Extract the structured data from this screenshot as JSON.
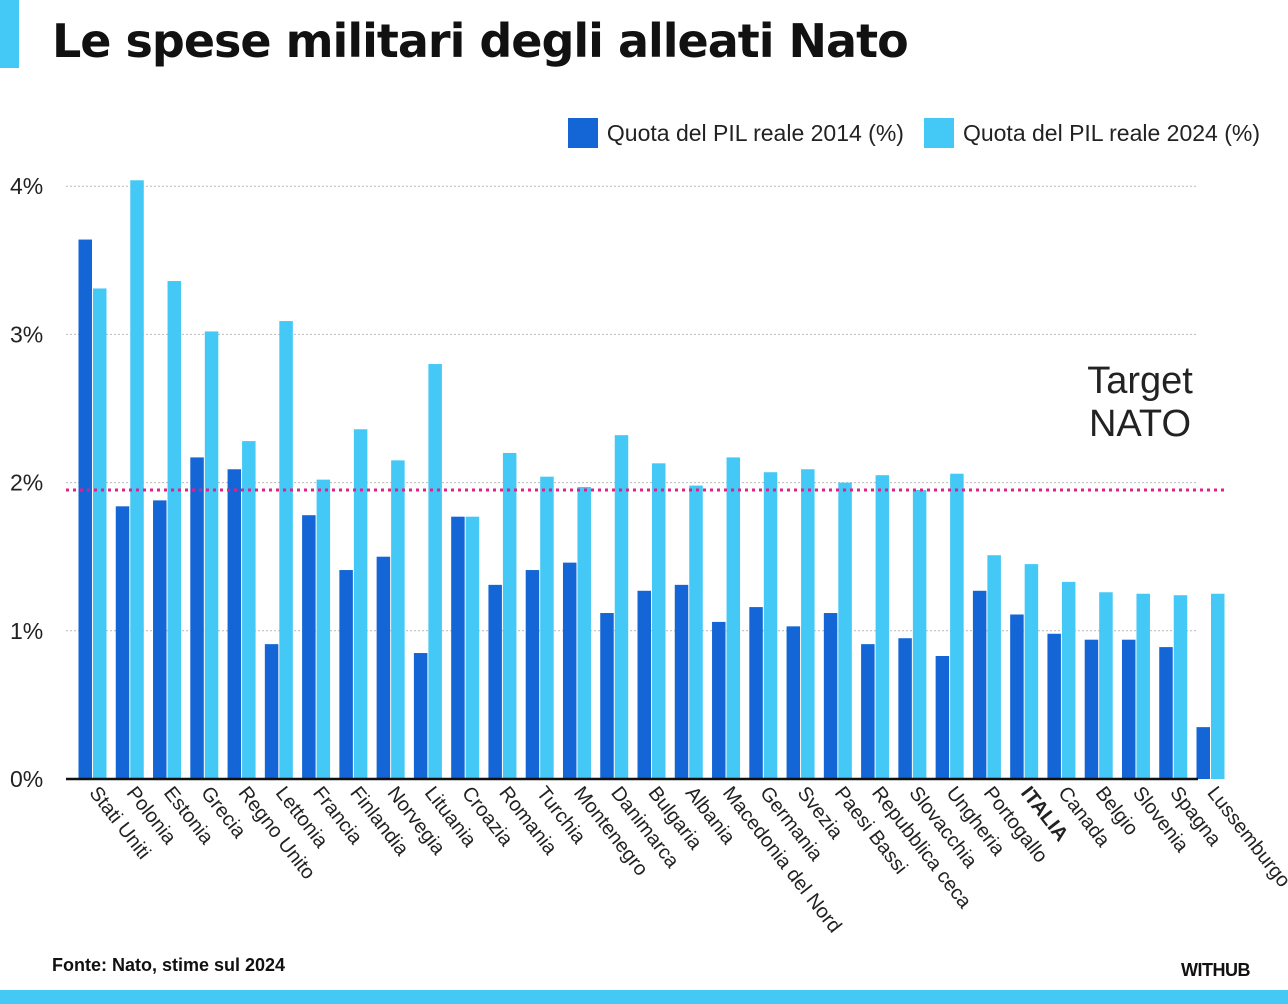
{
  "title": "Le spese militari degli alleati Nato",
  "source": "Fonte: Nato, stime sul 2024",
  "brand": "WITHUB",
  "colors": {
    "series2014": "#1466d6",
    "series2024": "#44c8f5",
    "target": "#e0218a",
    "accent": "#44c8f5"
  },
  "chart_data": {
    "type": "bar",
    "legend_position": "top-right",
    "grid": true,
    "xlabel": "",
    "ylabel": "",
    "ylim": [
      0,
      4
    ],
    "yticks": [
      0,
      1,
      2,
      3,
      4
    ],
    "ytick_labels": [
      "0%",
      "1%",
      "2%",
      "3%",
      "4%"
    ],
    "categories": [
      "Stati Uniti",
      "Polonia",
      "Estonia",
      "Grecia",
      "Regno Unito",
      "Lettonia",
      "Francia",
      "Finlandia",
      "Norvegia",
      "Lituania",
      "Croazia",
      "Romania",
      "Turchia",
      "Montenegro",
      "Danimarca",
      "Bulgaria",
      "Albania",
      "Macedonia del Nord",
      "Germania",
      "Svezia",
      "Paesi Bassi",
      "Repubblica ceca",
      "Slovacchia",
      "Ungheria",
      "Portogallo",
      "ITALIA",
      "Canada",
      "Belgio",
      "Slovenia",
      "Spagna",
      "Lussemburgo"
    ],
    "highlight_category": "ITALIA",
    "series": [
      {
        "name": "Quota del PIL reale 2014 (%)",
        "values": [
          3.64,
          1.84,
          1.88,
          2.17,
          2.09,
          0.91,
          1.78,
          1.41,
          1.5,
          0.85,
          1.77,
          1.31,
          1.41,
          1.46,
          1.12,
          1.27,
          1.31,
          1.06,
          1.16,
          1.03,
          1.12,
          0.91,
          0.95,
          0.83,
          1.27,
          1.11,
          0.98,
          0.94,
          0.94,
          0.89,
          0.35
        ]
      },
      {
        "name": "Quota del PIL reale 2024 (%)",
        "values": [
          3.31,
          4.04,
          3.36,
          3.02,
          2.28,
          3.09,
          2.02,
          2.36,
          2.15,
          2.8,
          1.77,
          2.2,
          2.04,
          1.97,
          2.32,
          2.13,
          1.98,
          2.17,
          2.07,
          2.09,
          2.0,
          2.05,
          1.95,
          2.06,
          1.51,
          1.45,
          1.33,
          1.26,
          1.25,
          1.24,
          1.25
        ]
      }
    ],
    "target": {
      "value": 1.95,
      "label_lines": [
        "Target",
        "NATO"
      ]
    }
  }
}
